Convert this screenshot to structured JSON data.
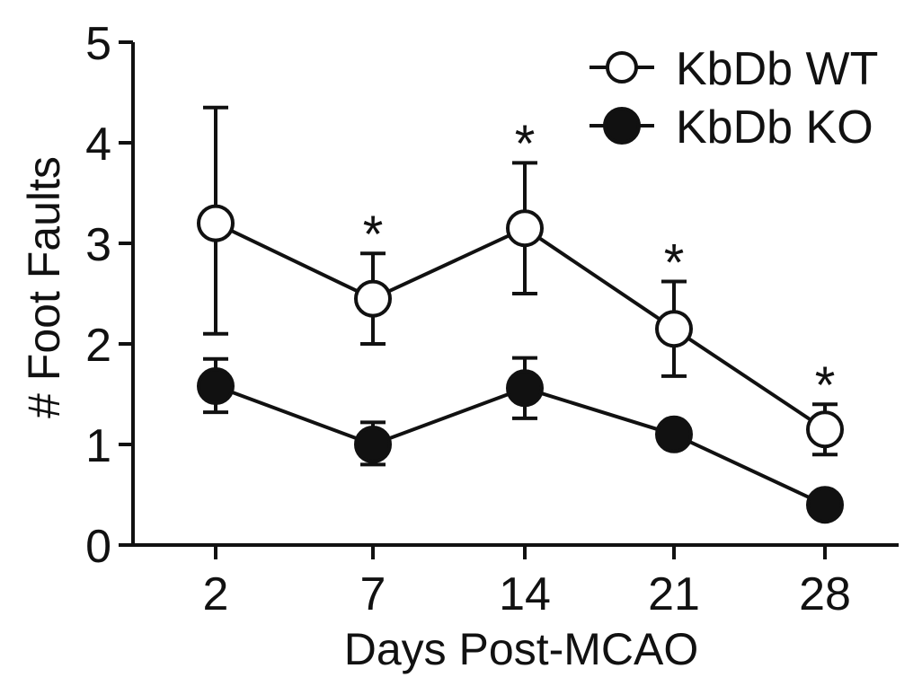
{
  "chart_data": {
    "type": "line",
    "xlabel": "Days Post-MCAO",
    "ylabel": "# Foot Faults",
    "categories": [
      "2",
      "7",
      "14",
      "21",
      "28"
    ],
    "ylim": [
      0,
      5
    ],
    "yticks": [
      0,
      1,
      2,
      3,
      4,
      5
    ],
    "grid": false,
    "legend_position": "top-right",
    "series": [
      {
        "name": "KbDb WT",
        "marker": "open-circle",
        "values": [
          3.2,
          2.45,
          3.15,
          2.15,
          1.15
        ],
        "error_upper": [
          4.35,
          2.9,
          3.8,
          2.62,
          1.4
        ],
        "error_lower": [
          2.1,
          2.0,
          2.5,
          1.68,
          0.9
        ]
      },
      {
        "name": "KbDb KO",
        "marker": "filled-circle",
        "values": [
          1.58,
          1.0,
          1.56,
          1.1,
          0.4
        ],
        "error_upper": [
          1.85,
          1.22,
          1.86,
          1.1,
          0.4
        ],
        "error_lower": [
          1.32,
          0.8,
          1.26,
          1.1,
          0.4
        ]
      }
    ],
    "annotations": [
      {
        "category": "7",
        "text": "*",
        "y": 3.25
      },
      {
        "category": "14",
        "text": "*",
        "y": 4.15
      },
      {
        "category": "21",
        "text": "*",
        "y": 2.97
      },
      {
        "category": "28",
        "text": "*",
        "y": 1.75
      }
    ],
    "colors": {
      "line": "#111111",
      "fill_open": "#ffffff",
      "fill_closed": "#111111"
    }
  }
}
